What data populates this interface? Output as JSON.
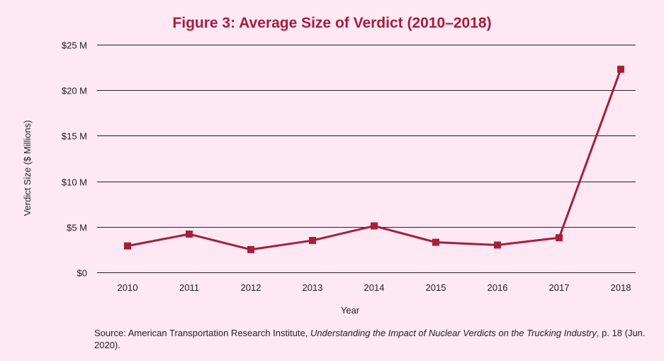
{
  "colors": {
    "background": "#fde8f4",
    "series": "#a51e3a",
    "title": "#a51e3a",
    "axis_text": "#222222",
    "grid": "#222222"
  },
  "chart_data": {
    "type": "line",
    "title": "Figure 3: Average Size of Verdict (2010–2018)",
    "xlabel": "Year",
    "ylabel": "Verdict Size ($ Millions)",
    "x": [
      "2010",
      "2011",
      "2012",
      "2013",
      "2014",
      "2015",
      "2016",
      "2017",
      "2018"
    ],
    "series": [
      {
        "values": [
          2.9,
          4.2,
          2.5,
          3.5,
          5.1,
          3.3,
          3.0,
          3.8,
          22.3
        ],
        "marker": "square"
      }
    ],
    "ylim": [
      0,
      25
    ],
    "yticks": [
      0,
      5,
      10,
      15,
      20,
      25
    ],
    "ytick_labels": [
      "$0",
      "$5 M",
      "$10 M",
      "$15 M",
      "$20 M",
      "$25 M"
    ],
    "grid": true,
    "legend": "none"
  },
  "source": {
    "prefix": "Source: American Transportation Research Institute, ",
    "italic": "Understanding the Impact of Nuclear Verdicts on the Trucking Industry",
    "suffix": ", p. 18 (Jun. 2020)."
  }
}
